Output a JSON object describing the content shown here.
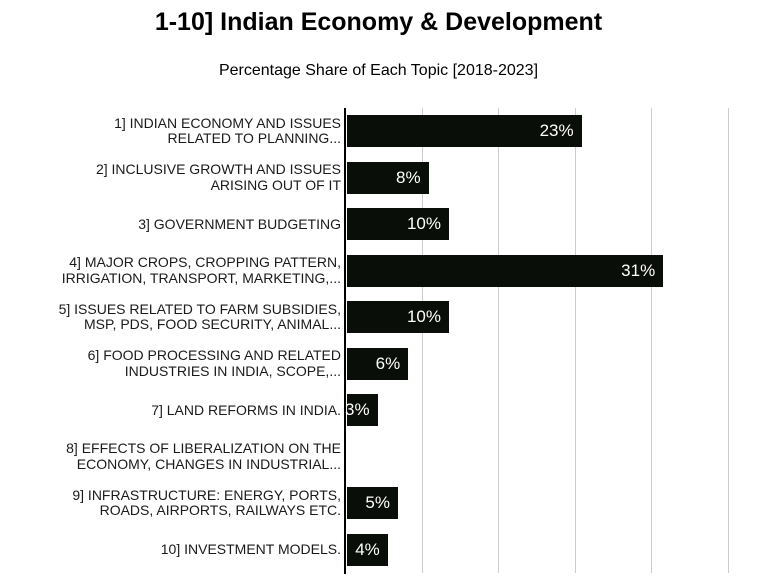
{
  "header": {
    "title": "1-10] Indian Economy & Development",
    "subtitle": "Percentage Share of Each Topic [2018-2023]"
  },
  "colors": {
    "background": "#ffffff",
    "bar": "#0a0e08",
    "gridline": "#cccccc",
    "axis": "#000000",
    "text": "#000000",
    "value_label": "#ffffff"
  },
  "chart_data": {
    "type": "bar",
    "orientation": "horizontal",
    "title": "1-10] Indian Economy & Development",
    "subtitle": "Percentage Share of Each Topic [2018-2023]",
    "categories": [
      "1] INDIAN ECONOMY AND ISSUES RELATED TO PLANNING...",
      "2] INCLUSIVE GROWTH AND ISSUES ARISING OUT OF IT",
      "3] GOVERNMENT BUDGETING",
      "4] MAJOR CROPS, CROPPING PATTERN, IRRIGATION, TRANSPORT, MARKETING,...",
      "5] ISSUES RELATED TO FARM SUBSIDIES, MSP, PDS, FOOD SECURITY, ANIMAL...",
      "6] FOOD PROCESSING AND RELATED INDUSTRIES IN INDIA, SCOPE,...",
      "7] LAND REFORMS IN INDIA.",
      "8] EFFECTS OF LIBERALIZATION ON THE ECONOMY, CHANGES IN INDUSTRIAL...",
      "9] INFRASTRUCTURE: ENERGY, PORTS, ROADS, AIRPORTS, RAILWAYS ETC.",
      "10] INVESTMENT MODELS."
    ],
    "category_lines": [
      [
        "1] INDIAN ECONOMY AND ISSUES",
        "RELATED TO PLANNING..."
      ],
      [
        "2] INCLUSIVE GROWTH AND ISSUES",
        "ARISING OUT OF IT"
      ],
      [
        "3] GOVERNMENT BUDGETING"
      ],
      [
        "4] MAJOR CROPS, CROPPING PATTERN,",
        "IRRIGATION, TRANSPORT, MARKETING,..."
      ],
      [
        "5] ISSUES RELATED TO FARM SUBSIDIES,",
        "MSP, PDS, FOOD SECURITY, ANIMAL..."
      ],
      [
        "6] FOOD PROCESSING AND RELATED",
        "INDUSTRIES IN INDIA, SCOPE,..."
      ],
      [
        "7] LAND REFORMS IN INDIA."
      ],
      [
        "8] EFFECTS OF LIBERALIZATION ON THE",
        "ECONOMY, CHANGES IN INDUSTRIAL..."
      ],
      [
        "9] INFRASTRUCTURE: ENERGY, PORTS,",
        "ROADS, AIRPORTS, RAILWAYS ETC."
      ],
      [
        "10] INVESTMENT MODELS."
      ]
    ],
    "values": [
      23,
      8,
      10,
      31,
      10,
      6,
      3,
      0,
      5,
      4
    ],
    "value_labels": [
      "23%",
      "8%",
      "10%",
      "31%",
      "10%",
      "6%",
      "3%",
      "",
      "5%",
      "4%"
    ],
    "xlim": [
      0,
      40
    ],
    "gridline_ticks": [
      7.5,
      15,
      22.5,
      30,
      37.5
    ],
    "grid": "vertical-only",
    "legend": "none",
    "x_axis_labels_visible": false
  }
}
